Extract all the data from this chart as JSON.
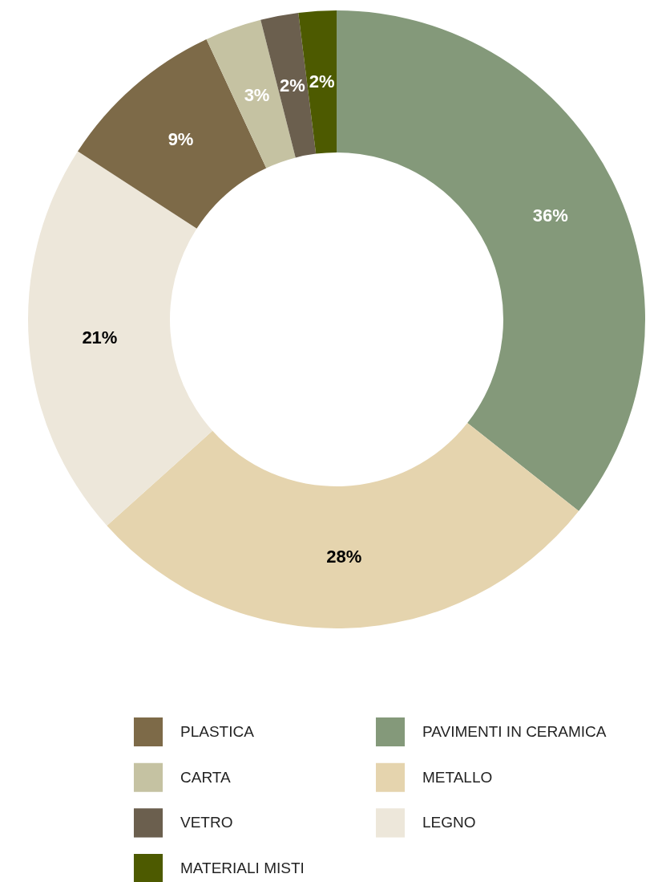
{
  "chart_data": {
    "type": "donut",
    "categories": [
      "PAVIMENTI IN CERAMICA",
      "METALLO",
      "LEGNO",
      "PLASTICA",
      "CARTA",
      "VETRO",
      "MATERIALI MISTI"
    ],
    "values": [
      36,
      28,
      21,
      9,
      3,
      2,
      2
    ],
    "colors": [
      "#84997a",
      "#e5d4ae",
      "#ede7da",
      "#7d6a48",
      "#c5c2a2",
      "#6b5f4e",
      "#4d5a00"
    ],
    "value_labels": [
      "36%",
      "28%",
      "21%",
      "9%",
      "3%",
      "2%",
      "2%"
    ],
    "legend": "bottom"
  }
}
